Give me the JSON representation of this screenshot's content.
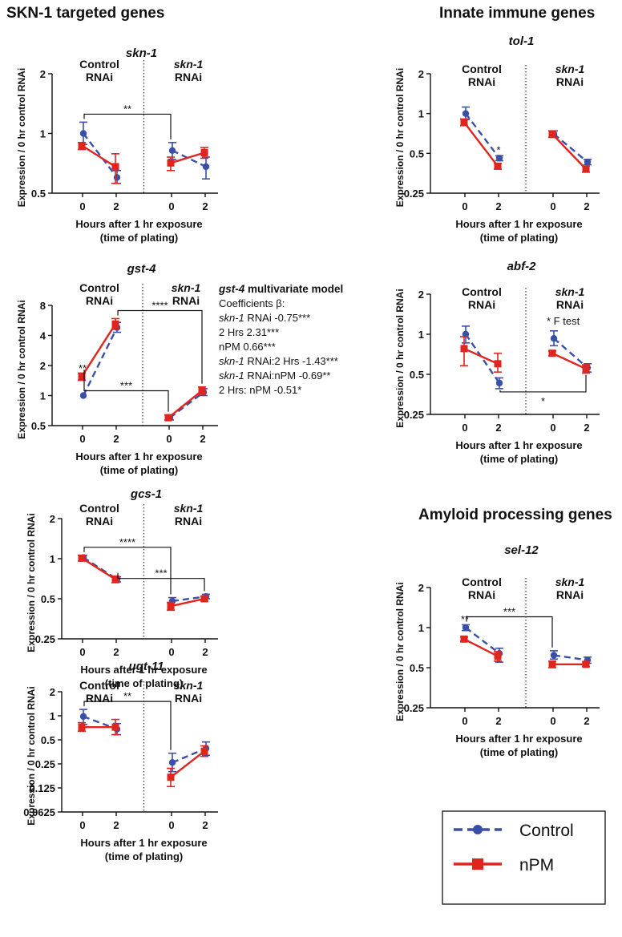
{
  "colors": {
    "control": "#3a4fa8",
    "npm": "#e0251f",
    "axis": "#111111"
  },
  "sections": {
    "skn1_targeted": "SKN-1 targeted genes",
    "innate_immune": "Innate immune genes",
    "amyloid": "Amyloid processing genes"
  },
  "common": {
    "control_label": [
      "Control",
      "RNAi"
    ],
    "skn1_label": [
      "skn-1",
      "RNAi"
    ],
    "ylabel": "Expression / 0 hr control RNAi",
    "xlabel": [
      "Hours after 1 hr exposure",
      "(time of plating)"
    ],
    "xticks": [
      "0",
      "2",
      "0",
      "2"
    ]
  },
  "gst4_model": {
    "title_gene": "gst-4",
    "title_rest": " multivariate model",
    "header": "Coefficients β:",
    "lines": [
      {
        "italic": "skn-1",
        "rest": " RNAi -0.75***"
      },
      {
        "italic": "",
        "rest": "2 Hrs 2.31***"
      },
      {
        "italic": "",
        "rest": "nPM 0.66***"
      },
      {
        "italic": "skn-1",
        "rest": " RNAi:2 Hrs -1.43***"
      },
      {
        "italic": "skn-1",
        "rest": " RNAi:nPM -0.69**"
      },
      {
        "italic": "",
        "rest": "2 Hrs: nPM -0.51*"
      }
    ]
  },
  "legend": {
    "control": "Control",
    "npm": "nPM"
  },
  "chart_data": [
    {
      "id": "skn1",
      "type": "line",
      "title": "skn-1",
      "scale": "log2",
      "ylim": [
        0.5,
        2
      ],
      "yticks": [
        0.5,
        1,
        2
      ],
      "ytick_labels": [
        "0.5",
        "1",
        "2"
      ],
      "categories": [
        "Control 0",
        "Control 2",
        "skn-1 0",
        "skn-1 2"
      ],
      "series": [
        {
          "name": "Control",
          "values": [
            1.0,
            0.6,
            0.82,
            0.68
          ],
          "err_lo": [
            0.88,
            0.56,
            0.74,
            0.59
          ],
          "err_hi": [
            1.14,
            0.65,
            0.9,
            0.76
          ]
        },
        {
          "name": "nPM",
          "values": [
            0.87,
            0.68,
            0.71,
            0.8
          ],
          "err_lo": [
            0.83,
            0.56,
            0.65,
            0.75
          ],
          "err_hi": [
            0.9,
            0.79,
            0.76,
            0.85
          ]
        }
      ],
      "annotations": [
        {
          "text": "**",
          "type": "bracket",
          "from": 0,
          "to": 2
        }
      ]
    },
    {
      "id": "gst4",
      "type": "line",
      "title": "gst-4",
      "scale": "log2",
      "ylim": [
        0.5,
        8
      ],
      "yticks": [
        0.5,
        1,
        2,
        4,
        8
      ],
      "ytick_labels": [
        "0.5",
        "1",
        "2",
        "4",
        "8"
      ],
      "categories": [
        "Control 0",
        "Control 2",
        "skn-1 0",
        "skn-1 2"
      ],
      "series": [
        {
          "name": "Control",
          "values": [
            1.0,
            4.8,
            0.6,
            1.08
          ],
          "err_lo": [
            1.0,
            4.3,
            0.57,
            1.0
          ],
          "err_hi": [
            1.0,
            5.4,
            0.64,
            1.17
          ]
        },
        {
          "name": "nPM",
          "values": [
            1.55,
            5.2,
            0.6,
            1.12
          ],
          "err_lo": [
            1.42,
            4.6,
            0.57,
            1.03
          ],
          "err_hi": [
            1.68,
            5.9,
            0.64,
            1.22
          ]
        }
      ],
      "annotations": [
        {
          "text": "**",
          "type": "point",
          "at": 0
        },
        {
          "text": "****",
          "type": "bracket",
          "from": 1,
          "to": 3
        },
        {
          "text": "***",
          "type": "bracket",
          "from": 0,
          "to": 2
        }
      ]
    },
    {
      "id": "gcs1",
      "type": "line",
      "title": "gcs-1",
      "scale": "log2",
      "ylim": [
        0.25,
        2
      ],
      "yticks": [
        0.25,
        0.5,
        1,
        2
      ],
      "ytick_labels": [
        "0.25",
        "0.5",
        "1",
        "2"
      ],
      "categories": [
        "Control 0",
        "Control 2",
        "skn-1 0",
        "skn-1 2"
      ],
      "series": [
        {
          "name": "Control",
          "values": [
            1.02,
            0.7,
            0.48,
            0.52
          ],
          "err_lo": [
            0.98,
            0.67,
            0.45,
            0.5
          ],
          "err_hi": [
            1.06,
            0.73,
            0.51,
            0.54
          ]
        },
        {
          "name": "nPM",
          "values": [
            1.01,
            0.7,
            0.44,
            0.5
          ],
          "err_lo": [
            0.96,
            0.66,
            0.41,
            0.48
          ],
          "err_hi": [
            1.06,
            0.74,
            0.47,
            0.52
          ]
        }
      ],
      "annotations": [
        {
          "text": "****",
          "type": "bracket",
          "from": 0,
          "to": 2
        },
        {
          "text": "***",
          "type": "bracket",
          "from": 1,
          "to": 3
        }
      ]
    },
    {
      "id": "ugt11",
      "type": "line",
      "title": "ugt-11",
      "scale": "log2",
      "ylim": [
        0.0625,
        2
      ],
      "yticks": [
        0.0625,
        0.125,
        0.25,
        0.5,
        1,
        2
      ],
      "ytick_labels": [
        "0.0625",
        "0.125",
        "0.25",
        "0.5",
        "1",
        "2"
      ],
      "categories": [
        "Control 0",
        "Control 2",
        "skn-1 0",
        "skn-1 2"
      ],
      "series": [
        {
          "name": "Control",
          "values": [
            0.98,
            0.68,
            0.26,
            0.39
          ],
          "err_lo": [
            0.78,
            0.58,
            0.2,
            0.32
          ],
          "err_hi": [
            1.2,
            0.8,
            0.34,
            0.47
          ]
        },
        {
          "name": "nPM",
          "values": [
            0.72,
            0.72,
            0.17,
            0.36
          ],
          "err_lo": [
            0.64,
            0.58,
            0.13,
            0.31
          ],
          "err_hi": [
            0.82,
            0.9,
            0.22,
            0.42
          ]
        }
      ],
      "annotations": [
        {
          "text": "**",
          "type": "bracket",
          "from": 0,
          "to": 2
        }
      ]
    },
    {
      "id": "tol1",
      "type": "line",
      "title": "tol-1",
      "scale": "log2",
      "ylim": [
        0.25,
        2
      ],
      "yticks": [
        0.25,
        0.5,
        1,
        2
      ],
      "ytick_labels": [
        "0.25",
        "0.5",
        "1",
        "2"
      ],
      "categories": [
        "Control 0",
        "Control 2",
        "skn-1 0",
        "skn-1 2"
      ],
      "series": [
        {
          "name": "Control",
          "values": [
            1.0,
            0.46,
            0.7,
            0.43
          ],
          "err_lo": [
            0.9,
            0.44,
            0.66,
            0.41
          ],
          "err_hi": [
            1.12,
            0.48,
            0.74,
            0.45
          ]
        },
        {
          "name": "nPM",
          "values": [
            0.86,
            0.4,
            0.7,
            0.38
          ],
          "err_lo": [
            0.81,
            0.38,
            0.66,
            0.36
          ],
          "err_hi": [
            0.91,
            0.42,
            0.74,
            0.4
          ]
        }
      ],
      "annotations": [
        {
          "text": "*",
          "type": "point",
          "at": 1
        }
      ]
    },
    {
      "id": "abf2",
      "type": "line",
      "title": "abf-2",
      "scale": "log2",
      "ylim": [
        0.25,
        2
      ],
      "yticks": [
        0.25,
        0.5,
        1,
        2
      ],
      "ytick_labels": [
        "0.25",
        "0.5",
        "1",
        "2"
      ],
      "categories": [
        "Control 0",
        "Control 2",
        "skn-1 0",
        "skn-1 2"
      ],
      "series": [
        {
          "name": "Control",
          "values": [
            1.0,
            0.43,
            0.93,
            0.56
          ],
          "err_lo": [
            0.86,
            0.39,
            0.82,
            0.52
          ],
          "err_hi": [
            1.15,
            0.47,
            1.06,
            0.6
          ]
        },
        {
          "name": "nPM",
          "values": [
            0.78,
            0.6,
            0.72,
            0.55
          ],
          "err_lo": [
            0.58,
            0.52,
            0.69,
            0.51
          ],
          "err_hi": [
            0.96,
            0.72,
            0.75,
            0.59
          ]
        }
      ],
      "annotations": [
        {
          "text": "* F test",
          "type": "label"
        },
        {
          "text": "*",
          "type": "bracket_low",
          "from": 1,
          "to": 3
        }
      ]
    },
    {
      "id": "sel12",
      "type": "line",
      "title": "sel-12",
      "scale": "log2",
      "ylim": [
        0.25,
        2
      ],
      "yticks": [
        0.25,
        0.5,
        1,
        2
      ],
      "ytick_labels": [
        "0.25",
        "0.5",
        "1",
        "2"
      ],
      "categories": [
        "Control 0",
        "Control 2",
        "skn-1 0",
        "skn-1 2"
      ],
      "series": [
        {
          "name": "Control",
          "values": [
            1.0,
            0.64,
            0.62,
            0.57
          ],
          "err_lo": [
            0.95,
            0.55,
            0.58,
            0.54
          ],
          "err_hi": [
            1.05,
            0.7,
            0.67,
            0.6
          ]
        },
        {
          "name": "nPM",
          "values": [
            0.82,
            0.61,
            0.53,
            0.53
          ],
          "err_lo": [
            0.79,
            0.56,
            0.5,
            0.51
          ],
          "err_hi": [
            0.85,
            0.66,
            0.56,
            0.55
          ]
        }
      ],
      "annotations": [
        {
          "text": "**",
          "type": "point",
          "at": 0
        },
        {
          "text": "***",
          "type": "bracket",
          "from": 0,
          "to": 2
        }
      ]
    }
  ]
}
